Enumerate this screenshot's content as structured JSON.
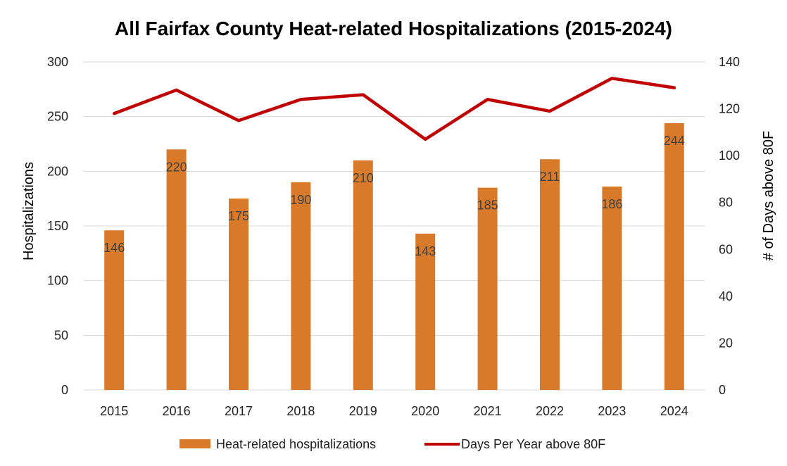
{
  "chart_data": {
    "type": "bar",
    "title": "All Fairfax County Heat-related Hospitalizations (2015-2024)",
    "categories": [
      "2015",
      "2016",
      "2017",
      "2018",
      "2019",
      "2020",
      "2021",
      "2022",
      "2023",
      "2024"
    ],
    "series": [
      {
        "name": "Heat-related hospitalizations",
        "type": "bar",
        "axis": "left",
        "color": "#D97A2B",
        "values": [
          146,
          220,
          175,
          190,
          210,
          143,
          185,
          211,
          186,
          244
        ],
        "labels": [
          "146",
          "220",
          "175",
          "190",
          "210",
          "143",
          "185",
          "211",
          "186",
          "244"
        ]
      },
      {
        "name": "Days Per Year above 80F",
        "type": "line",
        "axis": "right",
        "color": "#C00000",
        "values": [
          118,
          128,
          115,
          124,
          126,
          107,
          124,
          119,
          133,
          129
        ]
      }
    ],
    "ylabel": "Hospitalizations",
    "ylim": [
      0,
      300
    ],
    "yticks": [
      "0",
      "50",
      "100",
      "150",
      "200",
      "250",
      "300"
    ],
    "y2label": "# of Days above 80F",
    "y2lim": [
      0,
      140
    ],
    "y2ticks": [
      "0",
      "20",
      "40",
      "60",
      "80",
      "100",
      "120",
      "140"
    ],
    "grid": true,
    "legend_position": "bottom"
  }
}
